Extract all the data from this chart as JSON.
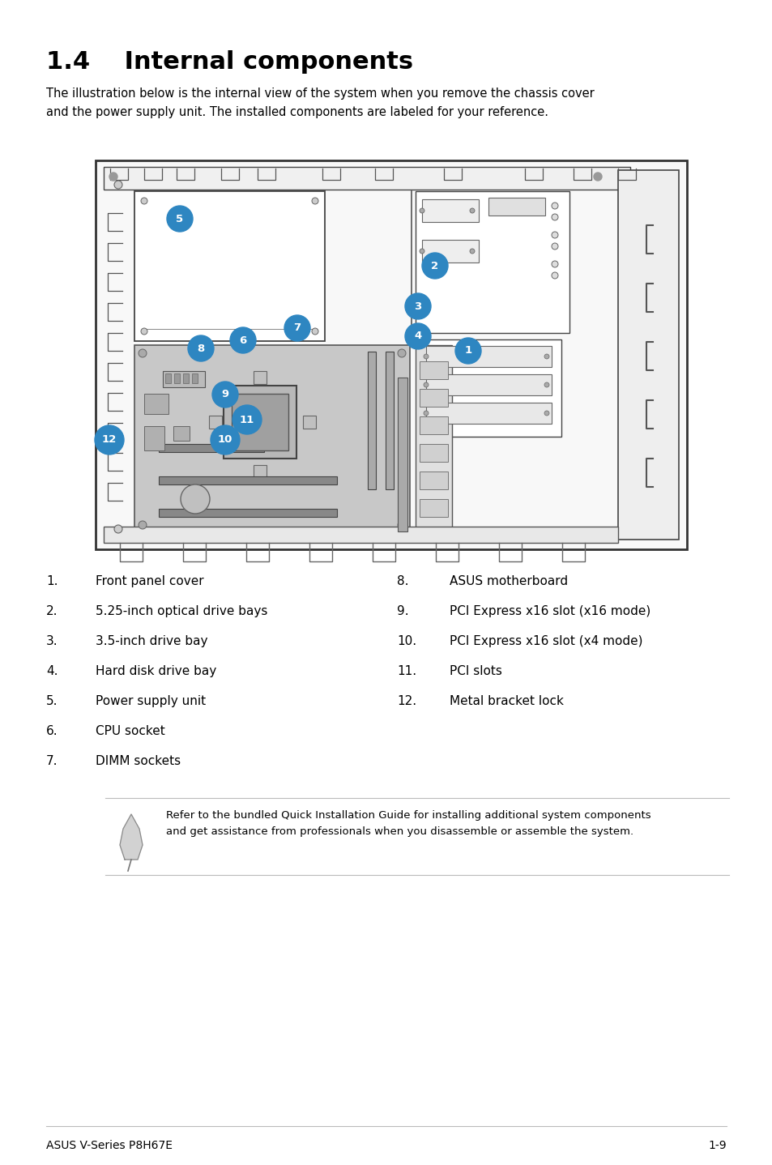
{
  "title": "1.4    Internal components",
  "subtitle": "The illustration below is the internal view of the system when you remove the chassis cover\nand the power supply unit. The installed components are labeled for your reference.",
  "items_left": [
    [
      "1.",
      "Front panel cover"
    ],
    [
      "2.",
      "5.25-inch optical drive bays"
    ],
    [
      "3.",
      "3.5-inch drive bay"
    ],
    [
      "4.",
      "Hard disk drive bay"
    ],
    [
      "5.",
      "Power supply unit"
    ],
    [
      "6.",
      "CPU socket"
    ],
    [
      "7.",
      "DIMM sockets"
    ]
  ],
  "items_right": [
    [
      "8.",
      "ASUS motherboard"
    ],
    [
      "9.",
      "PCI Express x16 slot (x16 mode)"
    ],
    [
      "10.",
      "PCI Express x16 slot (x4 mode)"
    ],
    [
      "11.",
      "PCI slots"
    ],
    [
      "12.",
      "Metal bracket lock"
    ]
  ],
  "note_text": "Refer to the bundled Quick Installation Guide for installing additional system components\nand get assistance from professionals when you disassemble or assemble the system.",
  "footer_left": "ASUS V-Series P8H67E",
  "footer_right": "1-9",
  "bg_color": "#ffffff",
  "text_color": "#000000",
  "title_fontsize": 22,
  "body_fontsize": 11,
  "note_fontsize": 9.5,
  "footer_fontsize": 10,
  "circle_color": "#2e86c1",
  "line_color": "#aaaaaa"
}
